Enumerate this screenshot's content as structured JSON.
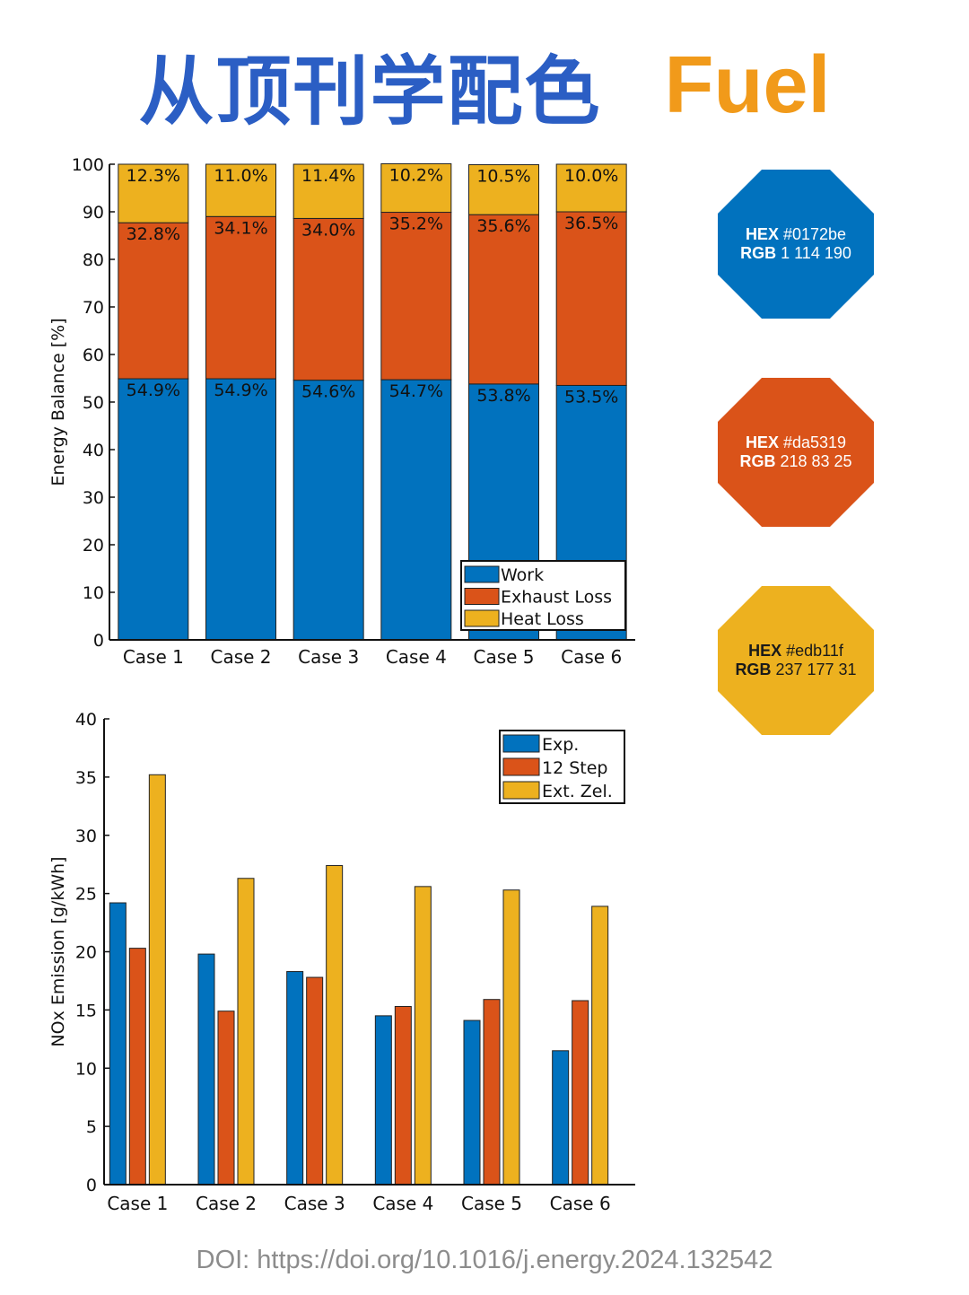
{
  "header": {
    "title_cn": "从顶刊学配色",
    "title_en": "Fuel"
  },
  "palette": [
    {
      "hex_label": "HEX",
      "hex_value": "#0172be",
      "rgb_label": "RGB",
      "rgb_value": "1 114 190",
      "color": "#0172be",
      "text_color": "#ffffff"
    },
    {
      "hex_label": "HEX",
      "hex_value": "#da5319",
      "rgb_label": "RGB",
      "rgb_value": "218 83 25",
      "color": "#da5319",
      "text_color": "#ffffff"
    },
    {
      "hex_label": "HEX",
      "hex_value": "#edb11f",
      "rgb_label": "RGB",
      "rgb_value": "237 177 31",
      "color": "#edb11f",
      "text_color": "#1a1a1a"
    }
  ],
  "chart_data": [
    {
      "type": "bar",
      "stacked": true,
      "categories": [
        "Case 1",
        "Case 2",
        "Case 3",
        "Case 4",
        "Case 5",
        "Case 6"
      ],
      "series": [
        {
          "name": "Work",
          "color": "#0172be",
          "values": [
            54.9,
            54.9,
            54.6,
            54.7,
            53.8,
            53.5
          ],
          "labels": [
            "54.9%",
            "54.9%",
            "54.6%",
            "54.7%",
            "53.8%",
            "53.5%"
          ]
        },
        {
          "name": "Exhaust Loss",
          "color": "#da5319",
          "values": [
            32.8,
            34.1,
            34.0,
            35.2,
            35.6,
            36.5
          ],
          "labels": [
            "32.8%",
            "34.1%",
            "34.0%",
            "35.2%",
            "35.6%",
            "36.5%"
          ]
        },
        {
          "name": "Heat Loss",
          "color": "#edb11f",
          "values": [
            12.3,
            11.0,
            11.4,
            10.2,
            10.5,
            10.0
          ],
          "labels": [
            "12.3%",
            "11.0%",
            "11.4%",
            "10.2%",
            "10.5%",
            "10.0%"
          ]
        }
      ],
      "title": "",
      "xlabel": "",
      "ylabel": "Energy Balance [%]",
      "ylim": [
        0,
        100
      ],
      "yticks": [
        0,
        10,
        20,
        30,
        40,
        50,
        60,
        70,
        80,
        90,
        100
      ],
      "ytick_labels": [
        "0",
        "10",
        "20",
        "30",
        "40",
        "50",
        "60",
        "70",
        "80",
        "90",
        "100"
      ],
      "grid": false,
      "legend_position": "bottom-right"
    },
    {
      "type": "bar",
      "stacked": false,
      "categories": [
        "Case 1",
        "Case 2",
        "Case 3",
        "Case 4",
        "Case 5",
        "Case 6"
      ],
      "series": [
        {
          "name": "Exp.",
          "color": "#0172be",
          "values": [
            24.2,
            19.8,
            18.3,
            14.5,
            14.1,
            11.5
          ]
        },
        {
          "name": "12 Step",
          "color": "#da5319",
          "values": [
            20.3,
            14.9,
            17.8,
            15.3,
            15.9,
            15.8
          ]
        },
        {
          "name": "Ext. Zel.",
          "color": "#edb11f",
          "values": [
            35.2,
            26.3,
            27.4,
            25.6,
            25.3,
            23.9
          ]
        }
      ],
      "title": "",
      "xlabel": "",
      "ylabel": "NOx Emission [g/kWh]",
      "ylim": [
        0,
        40
      ],
      "yticks": [
        0,
        5,
        10,
        15,
        20,
        25,
        30,
        35,
        40
      ],
      "ytick_labels": [
        "0",
        "5",
        "10",
        "15",
        "20",
        "25",
        "30",
        "35",
        "40"
      ],
      "grid": false,
      "legend_position": "top-right"
    }
  ],
  "footer": {
    "doi": "DOI: https://doi.org/10.1016/j.energy.2024.132542"
  }
}
